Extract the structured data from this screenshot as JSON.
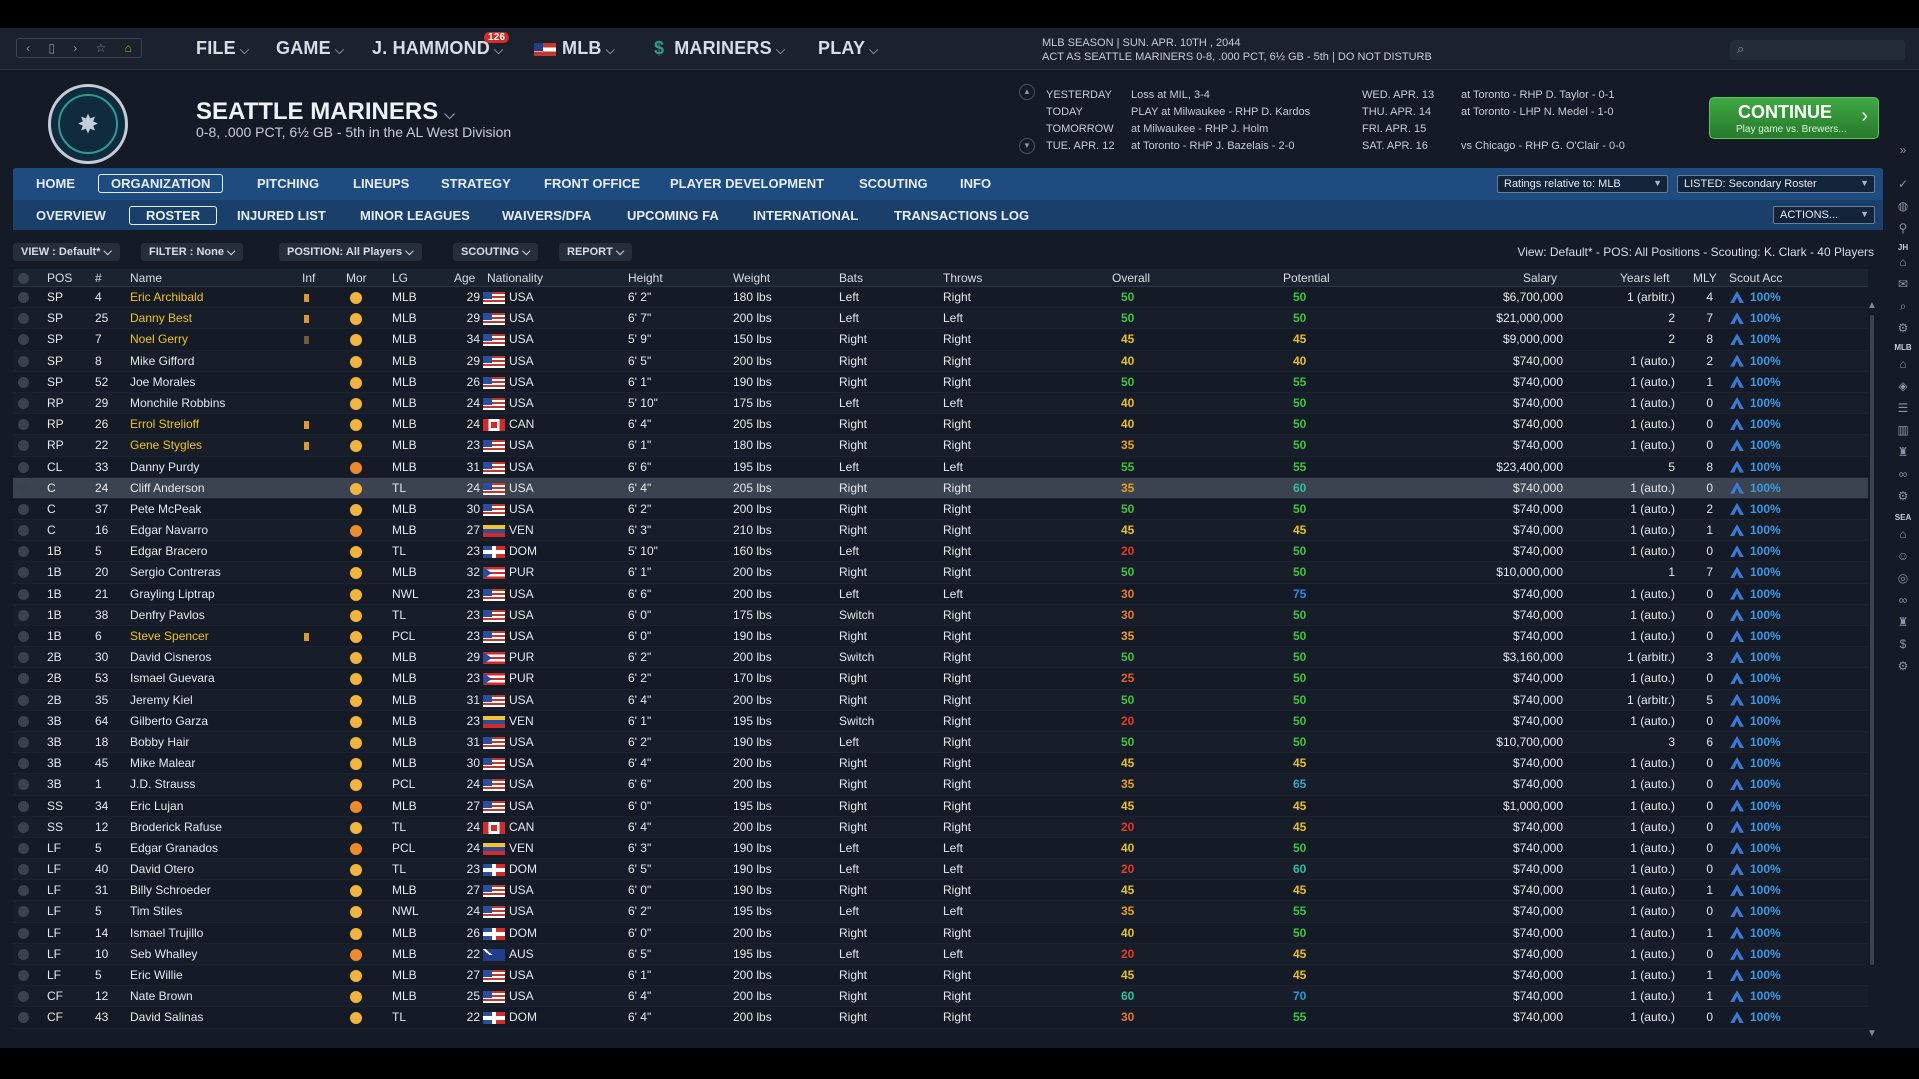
{
  "menubar": {
    "nav": [
      "‹",
      "▯",
      "›",
      "☆",
      "⌂"
    ],
    "items": [
      {
        "label": "FILE"
      },
      {
        "label": "GAME"
      },
      {
        "label": "J. HAMMOND",
        "badge": "126"
      },
      {
        "label": "MLB"
      },
      {
        "label": "MARINERS"
      },
      {
        "label": "PLAY"
      }
    ],
    "season_line1": "MLB SEASON  |  SUN. APR. 10TH , 2044",
    "season_line2": "ACT AS SEATTLE MARINERS  0-8, .000 PCT, 6½ GB - 5th | DO NOT DISTURB"
  },
  "team": {
    "name": "SEATTLE MARINERS",
    "record": "0-8, .000 PCT, 6½ GB - 5th in the AL West Division"
  },
  "schedule_left": [
    {
      "day": "YESTERDAY",
      "info": "Loss at MIL, 3-4"
    },
    {
      "day": "TODAY",
      "info": "PLAY at Milwaukee - RHP D. Kardos"
    },
    {
      "day": "TOMORROW",
      "info": "at Milwaukee - RHP J. Holm"
    },
    {
      "day": "TUE. APR. 12",
      "info": "at Toronto - RHP J. Bazelais - 2-0"
    }
  ],
  "schedule_right": [
    {
      "day": "WED. APR. 13",
      "info": "at Toronto - RHP D. Taylor - 0-1"
    },
    {
      "day": "THU. APR. 14",
      "info": "at Toronto - LHP N. Medel - 1-0"
    },
    {
      "day": "FRI. APR. 15",
      "info": ""
    },
    {
      "day": "SAT. APR. 16",
      "info": "vs Chicago - RHP G. O'Clair - 0-0"
    }
  ],
  "continue": {
    "label": "CONTINUE",
    "sub": "Play game vs. Brewers..."
  },
  "tabs1": [
    "HOME",
    "ORGANIZATION",
    "PITCHING",
    "LINEUPS",
    "STRATEGY",
    "FRONT OFFICE",
    "PLAYER DEVELOPMENT",
    "SCOUTING",
    "INFO"
  ],
  "tabs2": [
    "OVERVIEW",
    "ROSTER",
    "INJURED LIST",
    "MINOR LEAGUES",
    "WAIVERS/DFA",
    "UPCOMING FA",
    "INTERNATIONAL",
    "TRANSACTIONS LOG"
  ],
  "ratings_select": "Ratings relative to: MLB",
  "listed_select": "LISTED: Secondary Roster",
  "actions": "ACTIONS...",
  "filters": {
    "view": "VIEW : Default*",
    "filter": "FILTER : None",
    "position": "POSITION: All Players",
    "scouting": "SCOUTING",
    "report": "REPORT",
    "info": "View: Default* - POS: All Positions - Scouting: K. Clark - 40 Players"
  },
  "columns": [
    "POS",
    "#",
    "Name",
    "Inf",
    "Mor",
    "LG",
    "Age",
    "Nationality",
    "Height",
    "Weight",
    "Bats",
    "Throws",
    "Overall",
    "Potential",
    "Salary",
    "Years left",
    "MLY",
    "Scout Acc"
  ],
  "players": [
    {
      "pos": "SP",
      "num": "4",
      "name": "Eric Archibald",
      "yellow": true,
      "inf": true,
      "mor": "y",
      "lg": "MLB",
      "age": "29",
      "nat": "USA",
      "ht": "6' 2\"",
      "wt": "180 lbs",
      "bats": "Left",
      "throws": "Right",
      "ovr": "50",
      "pot": "50",
      "sal": "$6,700,000",
      "yrs": "1 (arbitr.)",
      "mly": "4",
      "acc": "100%"
    },
    {
      "pos": "SP",
      "num": "25",
      "name": "Danny Best",
      "yellow": true,
      "inf": true,
      "mor": "y",
      "lg": "MLB",
      "age": "29",
      "nat": "USA",
      "ht": "6' 7\"",
      "wt": "200 lbs",
      "bats": "Left",
      "throws": "Left",
      "ovr": "50",
      "pot": "50",
      "sal": "$21,000,000",
      "yrs": "2",
      "mly": "7",
      "acc": "100%"
    },
    {
      "pos": "SP",
      "num": "7",
      "name": "Noel Gerry",
      "yellow": true,
      "inf": "dim",
      "mor": "y",
      "lg": "MLB",
      "age": "34",
      "nat": "USA",
      "ht": "5' 9\"",
      "wt": "150 lbs",
      "bats": "Right",
      "throws": "Right",
      "ovr": "45",
      "pot": "45",
      "sal": "$9,000,000",
      "yrs": "2",
      "mly": "8",
      "acc": "100%"
    },
    {
      "pos": "SP",
      "num": "8",
      "name": "Mike Gifford",
      "yellow": false,
      "inf": false,
      "mor": "y",
      "lg": "MLB",
      "age": "29",
      "nat": "USA",
      "ht": "6' 5\"",
      "wt": "200 lbs",
      "bats": "Right",
      "throws": "Right",
      "ovr": "40",
      "pot": "40",
      "sal": "$740,000",
      "yrs": "1 (auto.)",
      "mly": "2",
      "acc": "100%"
    },
    {
      "pos": "SP",
      "num": "52",
      "name": "Joe Morales",
      "yellow": false,
      "inf": false,
      "mor": "y",
      "lg": "MLB",
      "age": "26",
      "nat": "USA",
      "ht": "6' 1\"",
      "wt": "190 lbs",
      "bats": "Right",
      "throws": "Right",
      "ovr": "50",
      "pot": "55",
      "sal": "$740,000",
      "yrs": "1 (auto.)",
      "mly": "1",
      "acc": "100%"
    },
    {
      "pos": "RP",
      "num": "29",
      "name": "Monchile Robbins",
      "yellow": false,
      "inf": false,
      "mor": "y",
      "lg": "MLB",
      "age": "24",
      "nat": "USA",
      "ht": "5' 10\"",
      "wt": "175 lbs",
      "bats": "Left",
      "throws": "Left",
      "ovr": "40",
      "pot": "50",
      "sal": "$740,000",
      "yrs": "1 (auto.)",
      "mly": "0",
      "acc": "100%"
    },
    {
      "pos": "RP",
      "num": "26",
      "name": "Errol Strelioff",
      "yellow": true,
      "inf": true,
      "mor": "y",
      "lg": "MLB",
      "age": "24",
      "nat": "CAN",
      "ht": "6' 4\"",
      "wt": "205 lbs",
      "bats": "Right",
      "throws": "Right",
      "ovr": "40",
      "pot": "50",
      "sal": "$740,000",
      "yrs": "1 (auto.)",
      "mly": "0",
      "acc": "100%"
    },
    {
      "pos": "RP",
      "num": "22",
      "name": "Gene Stygles",
      "yellow": true,
      "inf": true,
      "mor": "y",
      "lg": "MLB",
      "age": "23",
      "nat": "USA",
      "ht": "6' 1\"",
      "wt": "180 lbs",
      "bats": "Right",
      "throws": "Right",
      "ovr": "35",
      "pot": "50",
      "sal": "$740,000",
      "yrs": "1 (auto.)",
      "mly": "0",
      "acc": "100%"
    },
    {
      "pos": "CL",
      "num": "33",
      "name": "Danny Purdy",
      "yellow": false,
      "inf": false,
      "mor": "o",
      "lg": "MLB",
      "age": "31",
      "nat": "USA",
      "ht": "6' 6\"",
      "wt": "195 lbs",
      "bats": "Left",
      "throws": "Left",
      "ovr": "55",
      "pot": "55",
      "sal": "$23,400,000",
      "yrs": "5",
      "mly": "8",
      "acc": "100%"
    },
    {
      "pos": "C",
      "num": "24",
      "name": "Cliff Anderson",
      "yellow": false,
      "inf": false,
      "mor": "y",
      "lg": "TL",
      "age": "24",
      "nat": "USA",
      "ht": "6' 4\"",
      "wt": "205 lbs",
      "bats": "Right",
      "throws": "Right",
      "ovr": "35",
      "pot": "60",
      "sal": "$740,000",
      "yrs": "1 (auto.)",
      "mly": "0",
      "acc": "100%",
      "selected": true
    },
    {
      "pos": "C",
      "num": "37",
      "name": "Pete McPeak",
      "yellow": false,
      "inf": false,
      "mor": "y",
      "lg": "MLB",
      "age": "30",
      "nat": "USA",
      "ht": "6' 2\"",
      "wt": "200 lbs",
      "bats": "Right",
      "throws": "Right",
      "ovr": "50",
      "pot": "50",
      "sal": "$740,000",
      "yrs": "1 (auto.)",
      "mly": "2",
      "acc": "100%"
    },
    {
      "pos": "C",
      "num": "16",
      "name": "Edgar Navarro",
      "yellow": false,
      "inf": false,
      "mor": "o",
      "lg": "MLB",
      "age": "27",
      "nat": "VEN",
      "ht": "6' 3\"",
      "wt": "210 lbs",
      "bats": "Right",
      "throws": "Right",
      "ovr": "45",
      "pot": "45",
      "sal": "$740,000",
      "yrs": "1 (auto.)",
      "mly": "1",
      "acc": "100%"
    },
    {
      "pos": "1B",
      "num": "5",
      "name": "Edgar Bracero",
      "yellow": false,
      "inf": false,
      "mor": "y",
      "lg": "TL",
      "age": "23",
      "nat": "DOM",
      "ht": "5' 10\"",
      "wt": "160 lbs",
      "bats": "Left",
      "throws": "Right",
      "ovr": "20",
      "pot": "50",
      "sal": "$740,000",
      "yrs": "1 (auto.)",
      "mly": "0",
      "acc": "100%"
    },
    {
      "pos": "1B",
      "num": "20",
      "name": "Sergio Contreras",
      "yellow": false,
      "inf": false,
      "mor": "y",
      "lg": "MLB",
      "age": "32",
      "nat": "PUR",
      "ht": "6' 1\"",
      "wt": "200 lbs",
      "bats": "Right",
      "throws": "Right",
      "ovr": "50",
      "pot": "50",
      "sal": "$10,000,000",
      "yrs": "1",
      "mly": "7",
      "acc": "100%"
    },
    {
      "pos": "1B",
      "num": "21",
      "name": "Grayling Liptrap",
      "yellow": false,
      "inf": false,
      "mor": "y",
      "lg": "NWL",
      "age": "23",
      "nat": "USA",
      "ht": "6' 6\"",
      "wt": "200 lbs",
      "bats": "Left",
      "throws": "Left",
      "ovr": "30",
      "pot": "75",
      "sal": "$740,000",
      "yrs": "1 (auto.)",
      "mly": "0",
      "acc": "100%"
    },
    {
      "pos": "1B",
      "num": "38",
      "name": "Denfry Pavlos",
      "yellow": false,
      "inf": false,
      "mor": "y",
      "lg": "TL",
      "age": "23",
      "nat": "USA",
      "ht": "6' 0\"",
      "wt": "175 lbs",
      "bats": "Switch",
      "throws": "Right",
      "ovr": "30",
      "pot": "50",
      "sal": "$740,000",
      "yrs": "1 (auto.)",
      "mly": "0",
      "acc": "100%"
    },
    {
      "pos": "1B",
      "num": "6",
      "name": "Steve Spencer",
      "yellow": true,
      "inf": true,
      "mor": "y",
      "lg": "PCL",
      "age": "23",
      "nat": "USA",
      "ht": "6' 0\"",
      "wt": "190 lbs",
      "bats": "Right",
      "throws": "Right",
      "ovr": "35",
      "pot": "50",
      "sal": "$740,000",
      "yrs": "1 (auto.)",
      "mly": "0",
      "acc": "100%"
    },
    {
      "pos": "2B",
      "num": "30",
      "name": "David Cisneros",
      "yellow": false,
      "inf": false,
      "mor": "y",
      "lg": "MLB",
      "age": "29",
      "nat": "PUR",
      "ht": "6' 2\"",
      "wt": "200 lbs",
      "bats": "Switch",
      "throws": "Right",
      "ovr": "50",
      "pot": "50",
      "sal": "$3,160,000",
      "yrs": "1 (arbitr.)",
      "mly": "3",
      "acc": "100%"
    },
    {
      "pos": "2B",
      "num": "53",
      "name": "Ismael Guevara",
      "yellow": false,
      "inf": false,
      "mor": "y",
      "lg": "MLB",
      "age": "23",
      "nat": "PUR",
      "ht": "6' 2\"",
      "wt": "170 lbs",
      "bats": "Right",
      "throws": "Right",
      "ovr": "25",
      "pot": "50",
      "sal": "$740,000",
      "yrs": "1 (auto.)",
      "mly": "0",
      "acc": "100%"
    },
    {
      "pos": "2B",
      "num": "35",
      "name": "Jeremy Kiel",
      "yellow": false,
      "inf": false,
      "mor": "y",
      "lg": "MLB",
      "age": "31",
      "nat": "USA",
      "ht": "6' 4\"",
      "wt": "200 lbs",
      "bats": "Right",
      "throws": "Right",
      "ovr": "50",
      "pot": "50",
      "sal": "$740,000",
      "yrs": "1 (arbitr.)",
      "mly": "5",
      "acc": "100%"
    },
    {
      "pos": "3B",
      "num": "64",
      "name": "Gilberto Garza",
      "yellow": false,
      "inf": false,
      "mor": "y",
      "lg": "MLB",
      "age": "23",
      "nat": "VEN",
      "ht": "6' 1\"",
      "wt": "195 lbs",
      "bats": "Switch",
      "throws": "Right",
      "ovr": "20",
      "pot": "50",
      "sal": "$740,000",
      "yrs": "1 (auto.)",
      "mly": "0",
      "acc": "100%"
    },
    {
      "pos": "3B",
      "num": "18",
      "name": "Bobby Hair",
      "yellow": false,
      "inf": false,
      "mor": "y",
      "lg": "MLB",
      "age": "31",
      "nat": "USA",
      "ht": "6' 2\"",
      "wt": "190 lbs",
      "bats": "Left",
      "throws": "Right",
      "ovr": "50",
      "pot": "50",
      "sal": "$10,700,000",
      "yrs": "3",
      "mly": "6",
      "acc": "100%"
    },
    {
      "pos": "3B",
      "num": "45",
      "name": "Mike Malear",
      "yellow": false,
      "inf": false,
      "mor": "y",
      "lg": "MLB",
      "age": "30",
      "nat": "USA",
      "ht": "6' 4\"",
      "wt": "200 lbs",
      "bats": "Right",
      "throws": "Right",
      "ovr": "45",
      "pot": "45",
      "sal": "$740,000",
      "yrs": "1 (auto.)",
      "mly": "0",
      "acc": "100%"
    },
    {
      "pos": "3B",
      "num": "1",
      "name": "J.D. Strauss",
      "yellow": false,
      "inf": false,
      "mor": "y",
      "lg": "PCL",
      "age": "24",
      "nat": "USA",
      "ht": "6' 6\"",
      "wt": "200 lbs",
      "bats": "Right",
      "throws": "Right",
      "ovr": "35",
      "pot": "65",
      "sal": "$740,000",
      "yrs": "1 (auto.)",
      "mly": "0",
      "acc": "100%"
    },
    {
      "pos": "SS",
      "num": "34",
      "name": "Eric Lujan",
      "yellow": false,
      "inf": false,
      "mor": "o",
      "lg": "MLB",
      "age": "27",
      "nat": "USA",
      "ht": "6' 0\"",
      "wt": "195 lbs",
      "bats": "Right",
      "throws": "Right",
      "ovr": "45",
      "pot": "45",
      "sal": "$1,000,000",
      "yrs": "1 (auto.)",
      "mly": "0",
      "acc": "100%"
    },
    {
      "pos": "SS",
      "num": "12",
      "name": "Broderick Rafuse",
      "yellow": false,
      "inf": false,
      "mor": "y",
      "lg": "TL",
      "age": "24",
      "nat": "CAN",
      "ht": "6' 4\"",
      "wt": "200 lbs",
      "bats": "Right",
      "throws": "Right",
      "ovr": "20",
      "pot": "45",
      "sal": "$740,000",
      "yrs": "1 (auto.)",
      "mly": "0",
      "acc": "100%"
    },
    {
      "pos": "LF",
      "num": "5",
      "name": "Edgar Granados",
      "yellow": false,
      "inf": false,
      "mor": "o",
      "lg": "PCL",
      "age": "24",
      "nat": "VEN",
      "ht": "6' 3\"",
      "wt": "190 lbs",
      "bats": "Left",
      "throws": "Left",
      "ovr": "40",
      "pot": "50",
      "sal": "$740,000",
      "yrs": "1 (auto.)",
      "mly": "0",
      "acc": "100%"
    },
    {
      "pos": "LF",
      "num": "40",
      "name": "David Otero",
      "yellow": false,
      "inf": false,
      "mor": "y",
      "lg": "TL",
      "age": "23",
      "nat": "DOM",
      "ht": "6' 5\"",
      "wt": "190 lbs",
      "bats": "Left",
      "throws": "Left",
      "ovr": "20",
      "pot": "60",
      "sal": "$740,000",
      "yrs": "1 (auto.)",
      "mly": "0",
      "acc": "100%"
    },
    {
      "pos": "LF",
      "num": "31",
      "name": "Billy Schroeder",
      "yellow": false,
      "inf": false,
      "mor": "y",
      "lg": "MLB",
      "age": "27",
      "nat": "USA",
      "ht": "6' 0\"",
      "wt": "190 lbs",
      "bats": "Right",
      "throws": "Right",
      "ovr": "45",
      "pot": "45",
      "sal": "$740,000",
      "yrs": "1 (auto.)",
      "mly": "1",
      "acc": "100%"
    },
    {
      "pos": "LF",
      "num": "5",
      "name": "Tim Stiles",
      "yellow": false,
      "inf": false,
      "mor": "y",
      "lg": "NWL",
      "age": "24",
      "nat": "USA",
      "ht": "6' 2\"",
      "wt": "195 lbs",
      "bats": "Left",
      "throws": "Left",
      "ovr": "35",
      "pot": "55",
      "sal": "$740,000",
      "yrs": "1 (auto.)",
      "mly": "0",
      "acc": "100%"
    },
    {
      "pos": "LF",
      "num": "14",
      "name": "Ismael Trujillo",
      "yellow": false,
      "inf": false,
      "mor": "y",
      "lg": "MLB",
      "age": "26",
      "nat": "DOM",
      "ht": "6' 0\"",
      "wt": "200 lbs",
      "bats": "Right",
      "throws": "Right",
      "ovr": "40",
      "pot": "50",
      "sal": "$740,000",
      "yrs": "1 (auto.)",
      "mly": "1",
      "acc": "100%"
    },
    {
      "pos": "LF",
      "num": "10",
      "name": "Seb Whalley",
      "yellow": false,
      "inf": false,
      "mor": "o",
      "lg": "MLB",
      "age": "22",
      "nat": "AUS",
      "ht": "6' 5\"",
      "wt": "195 lbs",
      "bats": "Left",
      "throws": "Left",
      "ovr": "20",
      "pot": "45",
      "sal": "$740,000",
      "yrs": "1 (auto.)",
      "mly": "0",
      "acc": "100%"
    },
    {
      "pos": "LF",
      "num": "5",
      "name": "Eric Willie",
      "yellow": false,
      "inf": false,
      "mor": "y",
      "lg": "MLB",
      "age": "27",
      "nat": "USA",
      "ht": "6' 1\"",
      "wt": "200 lbs",
      "bats": "Right",
      "throws": "Right",
      "ovr": "45",
      "pot": "45",
      "sal": "$740,000",
      "yrs": "1 (auto.)",
      "mly": "1",
      "acc": "100%"
    },
    {
      "pos": "CF",
      "num": "12",
      "name": "Nate Brown",
      "yellow": false,
      "inf": false,
      "mor": "y",
      "lg": "MLB",
      "age": "25",
      "nat": "USA",
      "ht": "6' 4\"",
      "wt": "200 lbs",
      "bats": "Right",
      "throws": "Right",
      "ovr": "60",
      "pot": "70",
      "sal": "$740,000",
      "yrs": "1 (auto.)",
      "mly": "1",
      "acc": "100%"
    },
    {
      "pos": "CF",
      "num": "43",
      "name": "David Salinas",
      "yellow": false,
      "inf": false,
      "mor": "y",
      "lg": "TL",
      "age": "22",
      "nat": "DOM",
      "ht": "6' 4\"",
      "wt": "200 lbs",
      "bats": "Right",
      "throws": "Right",
      "ovr": "30",
      "pot": "55",
      "sal": "$740,000",
      "yrs": "1 (auto.)",
      "mly": "0",
      "acc": "100%"
    }
  ],
  "rail": {
    "label_jh": "JH",
    "label_mlb": "MLB",
    "label_sea": "SEA"
  },
  "colors": {
    "accent": "#1e4c80",
    "continue": "#3fa843",
    "highlight_name": "#f0c419"
  }
}
